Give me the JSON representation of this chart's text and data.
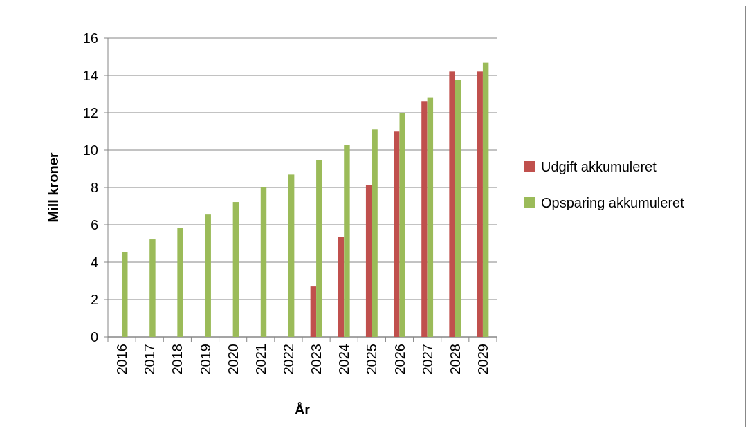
{
  "chart_data": {
    "type": "bar",
    "xlabel": "År",
    "ylabel": "Mill kroner",
    "categories": [
      "2016",
      "2017",
      "2018",
      "2019",
      "2020",
      "2021",
      "2022",
      "2023",
      "2024",
      "2025",
      "2026",
      "2027",
      "2028",
      "2029"
    ],
    "series": [
      {
        "name": "Udgift akkumuleret",
        "color": "#c0504d",
        "values": [
          null,
          null,
          null,
          null,
          null,
          null,
          null,
          2.7,
          5.37,
          8.13,
          10.99,
          12.62,
          14.21,
          14.21
        ]
      },
      {
        "name": "Opsparing akkumuleret",
        "color": "#9bbb59",
        "values": [
          4.55,
          5.22,
          5.83,
          6.55,
          7.22,
          8.0,
          8.69,
          9.47,
          10.28,
          11.1,
          11.99,
          12.83,
          13.76,
          14.68
        ]
      }
    ],
    "ylim": [
      0,
      16
    ],
    "yticks": [
      0,
      2,
      4,
      6,
      8,
      10,
      12,
      14,
      16
    ],
    "grid": "y",
    "legend": "right"
  }
}
